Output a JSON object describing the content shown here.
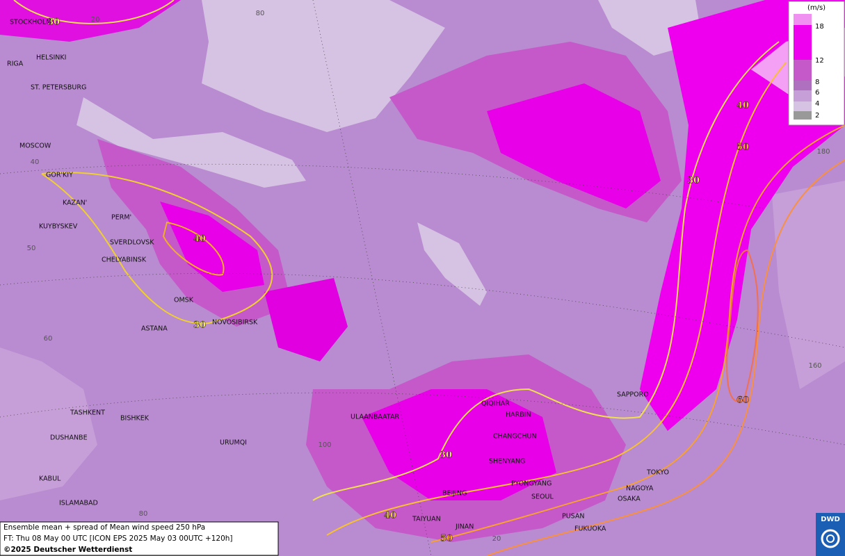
{
  "map": {
    "cities": [
      "STOCKHOLM",
      "HELSINKI",
      "RIGA",
      "ST. PETERSBURG",
      "MOSCOW",
      "GOR'KIY",
      "KAZAN'",
      "PERM'",
      "KUYBYSKEV",
      "SVERDLOVSK",
      "CHELYABINSK",
      "OMSK",
      "ASTANA",
      "NOVOSIBIRSK",
      "TASHKENT",
      "BISHKEK",
      "DUSHANBE",
      "URUMQI",
      "KABUL",
      "ISLAMABAD",
      "ULAANBAATAR",
      "QIQIHAR",
      "HARBIN",
      "CHANGCHUN",
      "SHENYANG",
      "PYONGYANG",
      "BEIJING",
      "SEOUL",
      "TAIYUAN",
      "JINAN",
      "PUSAN",
      "FUKUOKA",
      "SAPPORO",
      "TOKYO",
      "NAGOYA",
      "OSAKA"
    ],
    "contour_labels": [
      30,
      30,
      30,
      30,
      40,
      40,
      40,
      50,
      50,
      60
    ],
    "graticule_labels": [
      20,
      80,
      40,
      50,
      60,
      100,
      80,
      20,
      180,
      160
    ]
  },
  "legend": {
    "unit": "(m/s)",
    "labels": [
      18,
      12,
      8,
      6,
      4,
      2
    ]
  },
  "footer": {
    "lines": [
      "Ensemble mean + spread of Mean wind speed 250 hPa",
      "FT: Thu 08 May 00 UTC [ICON EPS 2025 May 03 00UTC +120h]",
      "©2025 Deutscher Wetterdienst"
    ]
  },
  "logo": "DWD"
}
